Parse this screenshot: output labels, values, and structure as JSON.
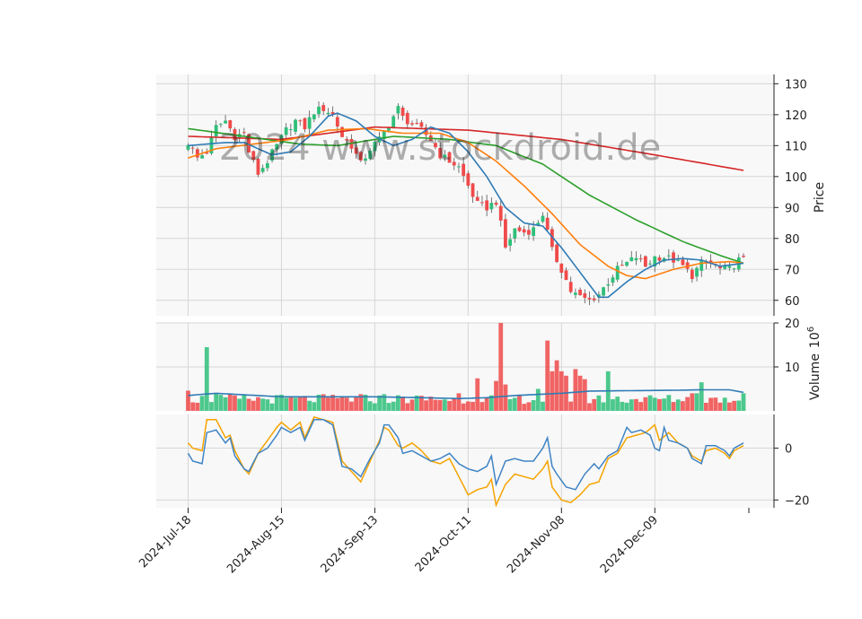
{
  "watermark": "2024 www.stockdroid.de",
  "chart_data": {
    "type": "candlestick",
    "date_labels": [
      "2024-Jul-18",
      "2024-Aug-15",
      "2024-Sep-13",
      "2024-Oct-11",
      "2024-Nov-08",
      "2024-Dec-09"
    ],
    "date_label_index": [
      0,
      20,
      40,
      60,
      80,
      100
    ],
    "n_bars": 120,
    "colors": {
      "up": "#2fbf7a",
      "down": "#f04a4a",
      "ma_blue": "#2f7bb5",
      "ma_orange": "#ff7f0e",
      "ma_green": "#2ca02c",
      "ma_red": "#d62728",
      "osc_blue": "#3f84c4",
      "osc_orange": "#f5a300",
      "vol_avg": "#2f7bb5"
    },
    "price_panel": {
      "ylabel": "Price",
      "ylim": [
        55,
        133
      ],
      "yticks": [
        60,
        70,
        80,
        90,
        100,
        110,
        120,
        130
      ],
      "anchors": [
        [
          0,
          111
        ],
        [
          2,
          106
        ],
        [
          4,
          108
        ],
        [
          6,
          116
        ],
        [
          8,
          118
        ],
        [
          10,
          113
        ],
        [
          12,
          114
        ],
        [
          13,
          108
        ],
        [
          15,
          101
        ],
        [
          17,
          105
        ],
        [
          19,
          110
        ],
        [
          21,
          115
        ],
        [
          23,
          118
        ],
        [
          25,
          116
        ],
        [
          27,
          121
        ],
        [
          29,
          122
        ],
        [
          31,
          120
        ],
        [
          33,
          113
        ],
        [
          35,
          110
        ],
        [
          37,
          104
        ],
        [
          39,
          109
        ],
        [
          41,
          112
        ],
        [
          43,
          117
        ],
        [
          45,
          122
        ],
        [
          46,
          119
        ],
        [
          48,
          117
        ],
        [
          50,
          115
        ],
        [
          52,
          112
        ],
        [
          54,
          107
        ],
        [
          56,
          105
        ],
        [
          58,
          103
        ],
        [
          60,
          97
        ],
        [
          62,
          91
        ],
        [
          64,
          90
        ],
        [
          66,
          92
        ],
        [
          68,
          77
        ],
        [
          70,
          83
        ],
        [
          72,
          82
        ],
        [
          74,
          83
        ],
        [
          76,
          88
        ],
        [
          78,
          76
        ],
        [
          80,
          70
        ],
        [
          82,
          63
        ],
        [
          84,
          61
        ],
        [
          86,
          60
        ],
        [
          88,
          62
        ],
        [
          90,
          66
        ],
        [
          92,
          70
        ],
        [
          94,
          72
        ],
        [
          96,
          74
        ],
        [
          98,
          71
        ],
        [
          100,
          74
        ],
        [
          102,
          74
        ],
        [
          104,
          73
        ],
        [
          106,
          71
        ],
        [
          108,
          68
        ],
        [
          110,
          72
        ],
        [
          112,
          72
        ],
        [
          114,
          70
        ],
        [
          116,
          70
        ],
        [
          118,
          73
        ],
        [
          119,
          73
        ]
      ],
      "ma_red_anchors": [
        [
          0,
          113
        ],
        [
          20,
          112
        ],
        [
          40,
          116
        ],
        [
          60,
          115
        ],
        [
          80,
          112
        ],
        [
          100,
          107
        ],
        [
          119,
          102
        ]
      ],
      "ma_green_anchors": [
        [
          0,
          115.5
        ],
        [
          12,
          113
        ],
        [
          24,
          110.5
        ],
        [
          32,
          110
        ],
        [
          44,
          113
        ],
        [
          56,
          112
        ],
        [
          66,
          110
        ],
        [
          76,
          104
        ],
        [
          86,
          94
        ],
        [
          96,
          86
        ],
        [
          106,
          79
        ],
        [
          114,
          74.5
        ],
        [
          119,
          72
        ]
      ],
      "ma_orange_anchors": [
        [
          0,
          106
        ],
        [
          6,
          109
        ],
        [
          14,
          110.5
        ],
        [
          22,
          112
        ],
        [
          30,
          115
        ],
        [
          38,
          115.5
        ],
        [
          46,
          114
        ],
        [
          54,
          114
        ],
        [
          60,
          111
        ],
        [
          66,
          105
        ],
        [
          72,
          97
        ],
        [
          78,
          88
        ],
        [
          84,
          78
        ],
        [
          90,
          71
        ],
        [
          94,
          68
        ],
        [
          98,
          67
        ],
        [
          104,
          70
        ],
        [
          110,
          72
        ],
        [
          116,
          72.5
        ],
        [
          119,
          72
        ]
      ],
      "ma_blue_anchors": [
        [
          0,
          110
        ],
        [
          4,
          110.5
        ],
        [
          8,
          111
        ],
        [
          12,
          111
        ],
        [
          18,
          107
        ],
        [
          22,
          108
        ],
        [
          26,
          113
        ],
        [
          30,
          119.5
        ],
        [
          32,
          120.5
        ],
        [
          36,
          118
        ],
        [
          40,
          113
        ],
        [
          44,
          110
        ],
        [
          48,
          112
        ],
        [
          52,
          116
        ],
        [
          56,
          114
        ],
        [
          60,
          108
        ],
        [
          64,
          100
        ],
        [
          68,
          90
        ],
        [
          72,
          85
        ],
        [
          76,
          84
        ],
        [
          80,
          77
        ],
        [
          84,
          69
        ],
        [
          88,
          61
        ],
        [
          90,
          61
        ],
        [
          94,
          66
        ],
        [
          98,
          70
        ],
        [
          102,
          73
        ],
        [
          106,
          73.5
        ],
        [
          110,
          73
        ],
        [
          114,
          71
        ],
        [
          119,
          72
        ]
      ]
    },
    "volume_panel": {
      "ylabel": "Volume",
      "scale_label": "10",
      "scale_exponent": "6",
      "ylim": [
        0,
        20
      ],
      "yticks": [
        10,
        20
      ],
      "spikes": {
        "0": 4.6,
        "4": 14.5,
        "6": 4.0,
        "37": 3.8,
        "42": 3.8,
        "58": 4.0,
        "62": 7.4,
        "66": 6.8,
        "67": 20.0,
        "68": 6.0,
        "75": 5.0,
        "77": 16.0,
        "78": 9.0,
        "79": 11.5,
        "80": 9.0,
        "81": 8.0,
        "83": 9.5,
        "84": 8.0,
        "85": 7.2,
        "90": 9.0,
        "108": 4.0,
        "109": 4.0,
        "110": 6.5,
        "115": 3.0,
        "119": 4.0
      },
      "avg_anchors": [
        [
          0,
          3.5
        ],
        [
          6,
          4.0
        ],
        [
          20,
          3.2
        ],
        [
          40,
          3.2
        ],
        [
          50,
          3.0
        ],
        [
          58,
          2.8
        ],
        [
          64,
          3.0
        ],
        [
          70,
          3.5
        ],
        [
          80,
          4.0
        ],
        [
          86,
          4.5
        ],
        [
          95,
          4.6
        ],
        [
          105,
          4.7
        ],
        [
          110,
          4.8
        ],
        [
          116,
          4.8
        ],
        [
          119,
          4.2
        ]
      ]
    },
    "oscillator_panel": {
      "ylim": [
        -23,
        13
      ],
      "yticks": [
        0,
        -20
      ],
      "blue_anchors": [
        [
          0,
          -2
        ],
        [
          1,
          -5
        ],
        [
          3,
          -6
        ],
        [
          4,
          6
        ],
        [
          6,
          7
        ],
        [
          8,
          2
        ],
        [
          9,
          4
        ],
        [
          10,
          -3
        ],
        [
          12,
          -8
        ],
        [
          13,
          -9
        ],
        [
          15,
          -2
        ],
        [
          17,
          0
        ],
        [
          19,
          5
        ],
        [
          20,
          8
        ],
        [
          22,
          6
        ],
        [
          24,
          8
        ],
        [
          25,
          3
        ],
        [
          27,
          11
        ],
        [
          29,
          11
        ],
        [
          31,
          9
        ],
        [
          33,
          -7
        ],
        [
          35,
          -8
        ],
        [
          37,
          -11
        ],
        [
          39,
          -4
        ],
        [
          41,
          2
        ],
        [
          42,
          9
        ],
        [
          43,
          9
        ],
        [
          45,
          4
        ],
        [
          46,
          -2
        ],
        [
          48,
          -1
        ],
        [
          50,
          -3
        ],
        [
          52,
          -5
        ],
        [
          54,
          -4
        ],
        [
          56,
          -2
        ],
        [
          58,
          -6
        ],
        [
          60,
          -8
        ],
        [
          62,
          -9
        ],
        [
          64,
          -7
        ],
        [
          65,
          -3
        ],
        [
          66,
          -14
        ],
        [
          68,
          -5
        ],
        [
          70,
          -4
        ],
        [
          72,
          -5
        ],
        [
          74,
          -5
        ],
        [
          76,
          0
        ],
        [
          77,
          4
        ],
        [
          78,
          -7
        ],
        [
          79,
          -10
        ],
        [
          81,
          -15
        ],
        [
          83,
          -16
        ],
        [
          85,
          -10
        ],
        [
          87,
          -6
        ],
        [
          88,
          -8
        ],
        [
          90,
          -3
        ],
        [
          92,
          -1
        ],
        [
          94,
          8
        ],
        [
          95,
          6
        ],
        [
          97,
          7
        ],
        [
          99,
          5
        ],
        [
          100,
          0
        ],
        [
          101,
          -1
        ],
        [
          102,
          8
        ],
        [
          103,
          3
        ],
        [
          105,
          2
        ],
        [
          107,
          0
        ],
        [
          108,
          -4
        ],
        [
          110,
          -6
        ],
        [
          111,
          1
        ],
        [
          113,
          1
        ],
        [
          115,
          -1
        ],
        [
          116,
          -3
        ],
        [
          117,
          0
        ],
        [
          119,
          2
        ]
      ],
      "orange_anchors": [
        [
          0,
          2
        ],
        [
          1,
          0
        ],
        [
          3,
          -1
        ],
        [
          4,
          11
        ],
        [
          6,
          11
        ],
        [
          8,
          4
        ],
        [
          9,
          5
        ],
        [
          10,
          -1
        ],
        [
          12,
          -8
        ],
        [
          13,
          -10
        ],
        [
          15,
          -2
        ],
        [
          17,
          3
        ],
        [
          19,
          8
        ],
        [
          20,
          10
        ],
        [
          22,
          7
        ],
        [
          24,
          10
        ],
        [
          25,
          4
        ],
        [
          27,
          12
        ],
        [
          29,
          11
        ],
        [
          31,
          10
        ],
        [
          33,
          -5
        ],
        [
          35,
          -9
        ],
        [
          37,
          -13
        ],
        [
          39,
          -5
        ],
        [
          41,
          3
        ],
        [
          42,
          8
        ],
        [
          43,
          7
        ],
        [
          45,
          1
        ],
        [
          46,
          0
        ],
        [
          48,
          2
        ],
        [
          50,
          -1
        ],
        [
          52,
          -5
        ],
        [
          54,
          -6
        ],
        [
          56,
          -4
        ],
        [
          58,
          -11
        ],
        [
          60,
          -18
        ],
        [
          62,
          -16
        ],
        [
          64,
          -15
        ],
        [
          65,
          -12
        ],
        [
          66,
          -22
        ],
        [
          68,
          -14
        ],
        [
          70,
          -10
        ],
        [
          72,
          -11
        ],
        [
          74,
          -12
        ],
        [
          76,
          -8
        ],
        [
          77,
          -5
        ],
        [
          78,
          -15
        ],
        [
          80,
          -20
        ],
        [
          82,
          -21
        ],
        [
          84,
          -18
        ],
        [
          86,
          -14
        ],
        [
          88,
          -13
        ],
        [
          90,
          -4
        ],
        [
          92,
          -2
        ],
        [
          94,
          4
        ],
        [
          96,
          5
        ],
        [
          98,
          6
        ],
        [
          100,
          9
        ],
        [
          101,
          3
        ],
        [
          103,
          6
        ],
        [
          105,
          2
        ],
        [
          107,
          0
        ],
        [
          108,
          -3
        ],
        [
          110,
          -5
        ],
        [
          111,
          -1
        ],
        [
          113,
          0
        ],
        [
          115,
          -2
        ],
        [
          116,
          -4
        ],
        [
          117,
          -1
        ],
        [
          119,
          1
        ]
      ]
    }
  }
}
